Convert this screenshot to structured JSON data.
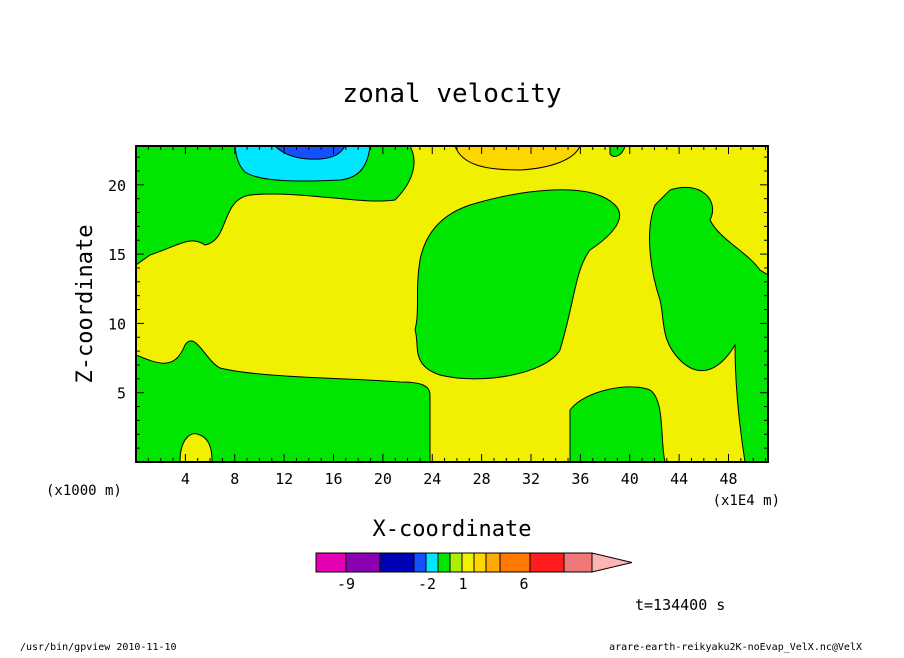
{
  "chart_data": {
    "type": "heatmap",
    "title": "zonal velocity",
    "xlabel": "X-coordinate",
    "ylabel": "Z-coordinate",
    "x_unit_left": "(x1000 m)",
    "x_unit_right": "(x1E4 m)",
    "xlim": [
      0,
      51.2
    ],
    "ylim": [
      0,
      22.8
    ],
    "x_ticks": [
      {
        "value": 4,
        "label": "4"
      },
      {
        "value": 8,
        "label": "8"
      },
      {
        "value": 12,
        "label": "12"
      },
      {
        "value": 16,
        "label": "16"
      },
      {
        "value": 20,
        "label": "20"
      },
      {
        "value": 24,
        "label": "24"
      },
      {
        "value": 28,
        "label": "28"
      },
      {
        "value": 32,
        "label": "32"
      },
      {
        "value": 36,
        "label": "36"
      },
      {
        "value": 40,
        "label": "40"
      },
      {
        "value": 44,
        "label": "44"
      },
      {
        "value": 48,
        "label": "48"
      }
    ],
    "y_ticks": [
      {
        "value": 5,
        "label": "5"
      },
      {
        "value": 10,
        "label": "10"
      },
      {
        "value": 15,
        "label": "15"
      },
      {
        "value": 20,
        "label": "20"
      }
    ],
    "colorbar": {
      "levels": [
        {
          "color": "#e600b4"
        },
        {
          "color": "#8c00b4"
        },
        {
          "color": "#0000b4"
        },
        {
          "color": "#1450ff"
        },
        {
          "color": "#00e6ff"
        },
        {
          "color": "#00e600"
        },
        {
          "color": "#aaf000"
        },
        {
          "color": "#f0f000"
        },
        {
          "color": "#ffd700"
        },
        {
          "color": "#ffaa00"
        },
        {
          "color": "#ff7800"
        },
        {
          "color": "#ff1e1e"
        },
        {
          "color": "#f07878"
        },
        {
          "color": "#ffb4b4"
        }
      ],
      "labels": [
        {
          "text": "-9",
          "at": 1
        },
        {
          "text": "-2",
          "at": 4
        },
        {
          "text": "1",
          "at": 6
        },
        {
          "text": "6",
          "at": 8
        }
      ]
    },
    "regions": [
      {
        "name": "cyan",
        "color": "#00e6ff"
      },
      {
        "name": "blue",
        "color": "#1450ff"
      },
      {
        "name": "orange",
        "color": "#ffd700"
      },
      {
        "name": "green",
        "color": "#00e600"
      },
      {
        "name": "yellow",
        "color": "#f0f000"
      }
    ]
  },
  "time_label": "t=134400 s",
  "footer_left": "/usr/bin/gpview  2010-11-10",
  "footer_right": "arare-earth-reikyaku2K-noEvap_VelX.nc@VelX"
}
